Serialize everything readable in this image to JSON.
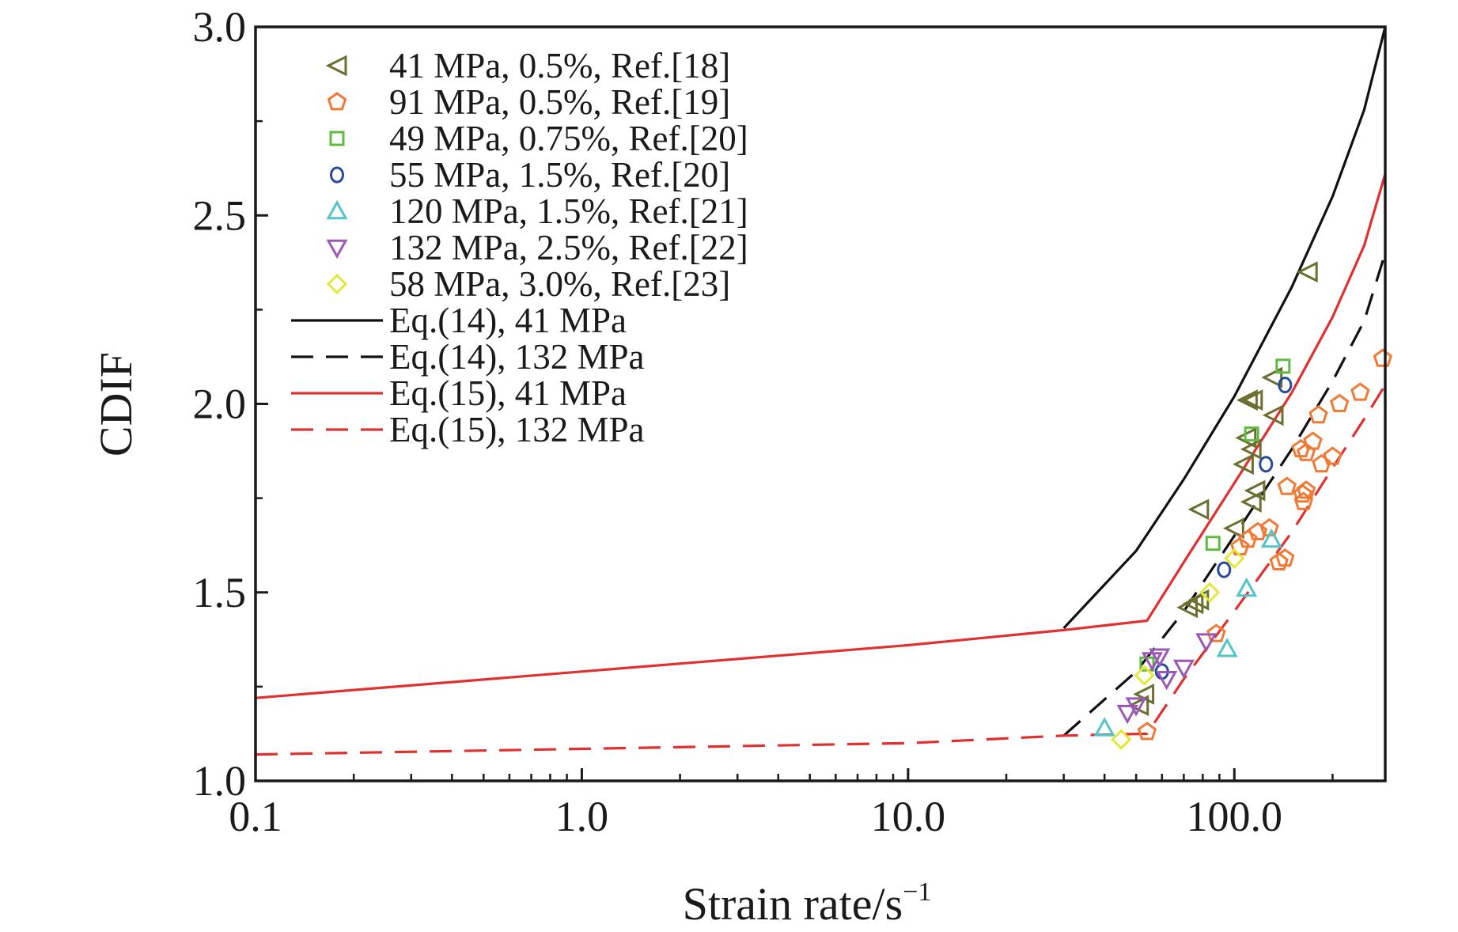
{
  "chart_data": {
    "type": "scatter",
    "xscale": "log",
    "xlim": [
      0.1,
      290
    ],
    "ylim": [
      1.0,
      3.0
    ],
    "xlabel": "Strain rate/s",
    "xlabel_sup": "−1",
    "ylabel": "CDIF",
    "x_ticks": [
      0.1,
      1.0,
      10.0,
      100.0
    ],
    "x_tick_labels": [
      "0.1",
      "1.0",
      "10.0",
      "100.0"
    ],
    "y_ticks": [
      1.0,
      1.5,
      2.0,
      2.5,
      3.0
    ],
    "y_tick_labels": [
      "1.0",
      "1.5",
      "2.0",
      "2.5",
      "3.0"
    ],
    "grid": false,
    "legend_position": "top-left",
    "series": [
      {
        "name": "41 MPa, 0.5%, Ref.[18]",
        "marker": "triangle-left",
        "color": "#6b7030",
        "points": [
          [
            168,
            2.35
          ],
          [
            131,
            2.07
          ],
          [
            114,
            2.01
          ],
          [
            110,
            2.01
          ],
          [
            132,
            1.97
          ],
          [
            109,
            1.91
          ],
          [
            113,
            1.88
          ],
          [
            107,
            1.84
          ],
          [
            116,
            1.77
          ],
          [
            113,
            1.74
          ],
          [
            78,
            1.72
          ],
          [
            100,
            1.67
          ],
          [
            78,
            1.48
          ],
          [
            75,
            1.47
          ],
          [
            72,
            1.46
          ],
          [
            53,
            1.23
          ],
          [
            51,
            1.2
          ]
        ]
      },
      {
        "name": "91 MPa, 0.5%, Ref.[19]",
        "marker": "pentagon",
        "color": "#ee7a35",
        "points": [
          [
            285,
            2.12
          ],
          [
            243,
            2.03
          ],
          [
            210,
            2.0
          ],
          [
            181,
            1.97
          ],
          [
            200,
            1.86
          ],
          [
            185,
            1.84
          ],
          [
            160,
            1.88
          ],
          [
            174,
            1.9
          ],
          [
            166,
            1.87
          ],
          [
            145,
            1.78
          ],
          [
            162,
            1.76
          ],
          [
            166,
            1.77
          ],
          [
            163,
            1.74
          ],
          [
            128,
            1.67
          ],
          [
            118,
            1.66
          ],
          [
            110,
            1.64
          ],
          [
            104,
            1.62
          ],
          [
            143,
            1.59
          ],
          [
            137,
            1.58
          ],
          [
            88,
            1.39
          ],
          [
            54,
            1.13
          ]
        ]
      },
      {
        "name": "49 MPa, 0.75%, Ref.[20]",
        "marker": "square",
        "color": "#5dbb3f",
        "points": [
          [
            141,
            2.1
          ],
          [
            113,
            1.92
          ],
          [
            86,
            1.63
          ],
          [
            54,
            1.31
          ]
        ]
      },
      {
        "name": "55 MPa, 1.5%, Ref.[20]",
        "marker": "circle",
        "color": "#284a9c",
        "points": [
          [
            143,
            2.05
          ],
          [
            125,
            1.84
          ],
          [
            93,
            1.56
          ],
          [
            60,
            1.29
          ]
        ]
      },
      {
        "name": "120 MPa, 1.5%, Ref.[21]",
        "marker": "triangle-up",
        "color": "#53c3cc",
        "points": [
          [
            130,
            1.64
          ],
          [
            109,
            1.51
          ],
          [
            95,
            1.35
          ],
          [
            40,
            1.14
          ]
        ]
      },
      {
        "name": "132 MPa, 2.5%, Ref.[22]",
        "marker": "triangle-down",
        "color": "#9b59b6",
        "points": [
          [
            59,
            1.33
          ],
          [
            56,
            1.32
          ],
          [
            70,
            1.3
          ],
          [
            62,
            1.27
          ],
          [
            82,
            1.37
          ],
          [
            50,
            1.2
          ],
          [
            47,
            1.18
          ]
        ]
      },
      {
        "name": "58 MPa, 3.0%, Ref.[23]",
        "marker": "diamond",
        "color": "#e6e63a",
        "points": [
          [
            84,
            1.5
          ],
          [
            100,
            1.59
          ],
          [
            53,
            1.28
          ],
          [
            45,
            1.11
          ]
        ]
      }
    ],
    "curves": [
      {
        "name": "Eq.(14), 41 MPa",
        "color": "#111111",
        "dash": "solid",
        "points": [
          [
            30,
            1.405
          ],
          [
            50,
            1.61
          ],
          [
            70,
            1.8
          ],
          [
            100,
            2.02
          ],
          [
            150,
            2.31
          ],
          [
            200,
            2.55
          ],
          [
            250,
            2.78
          ],
          [
            290,
            3.0
          ]
        ]
      },
      {
        "name": "Eq.(14), 132 MPa",
        "color": "#111111",
        "dash": "dashed",
        "points": [
          [
            30,
            1.12
          ],
          [
            50,
            1.29
          ],
          [
            70,
            1.45
          ],
          [
            100,
            1.65
          ],
          [
            150,
            1.88
          ],
          [
            200,
            2.06
          ],
          [
            250,
            2.22
          ],
          [
            290,
            2.4
          ]
        ]
      },
      {
        "name": "Eq.(15), 41 MPa",
        "color": "#e03030",
        "dash": "solid",
        "points": [
          [
            0.1,
            1.22
          ],
          [
            1,
            1.29
          ],
          [
            10,
            1.36
          ],
          [
            30,
            1.4
          ],
          [
            54,
            1.425
          ],
          [
            70,
            1.58
          ],
          [
            100,
            1.79
          ],
          [
            150,
            2.03
          ],
          [
            200,
            2.23
          ],
          [
            250,
            2.42
          ],
          [
            290,
            2.61
          ]
        ]
      },
      {
        "name": "Eq.(15), 132 MPa",
        "color": "#e03030",
        "dash": "dashed",
        "points": [
          [
            0.1,
            1.07
          ],
          [
            1,
            1.085
          ],
          [
            10,
            1.1
          ],
          [
            30,
            1.12
          ],
          [
            54,
            1.125
          ],
          [
            70,
            1.27
          ],
          [
            100,
            1.45
          ],
          [
            150,
            1.66
          ],
          [
            200,
            1.83
          ],
          [
            250,
            1.96
          ],
          [
            290,
            2.05
          ]
        ]
      }
    ]
  }
}
